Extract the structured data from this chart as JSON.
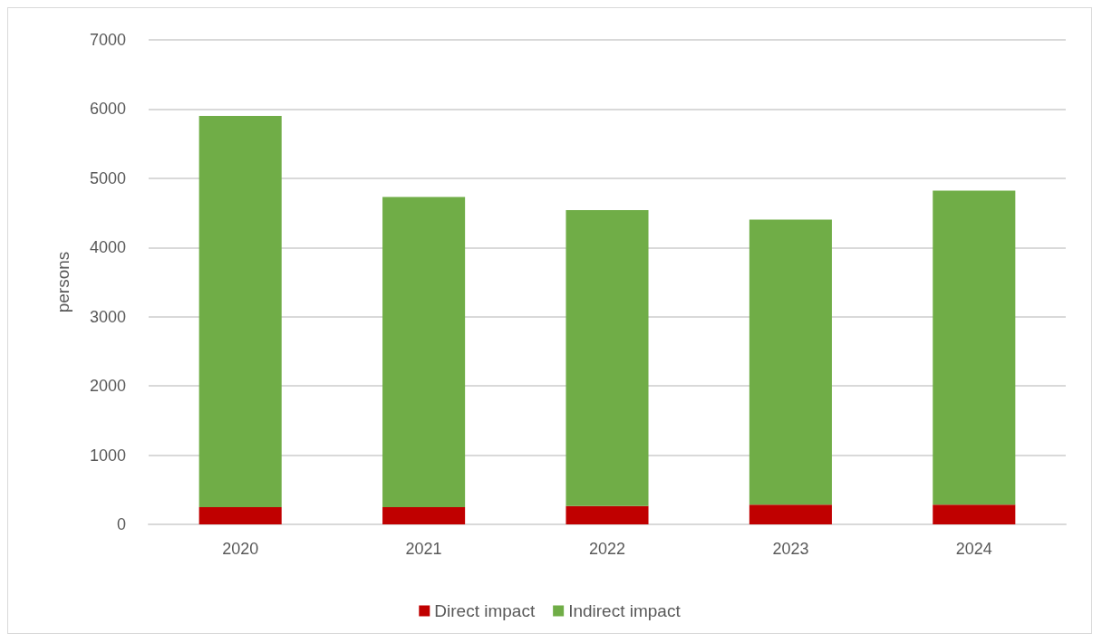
{
  "chart_data": {
    "type": "bar",
    "stacked": true,
    "ylabel": "persons",
    "categories": [
      "2020",
      "2021",
      "2022",
      "2023",
      "2024"
    ],
    "series": [
      {
        "name": "Direct impact",
        "color": "#c00000",
        "values": [
          250,
          250,
          265,
          283,
          283
        ]
      },
      {
        "name": "Indirect impact",
        "color": "#70ad47",
        "values": [
          5650,
          4480,
          4275,
          4120,
          4540
        ]
      }
    ],
    "ylim": [
      0,
      7000
    ],
    "yticks": [
      0,
      1000,
      2000,
      3000,
      4000,
      5000,
      6000,
      7000
    ],
    "grid": "y",
    "legend": "bottom"
  }
}
